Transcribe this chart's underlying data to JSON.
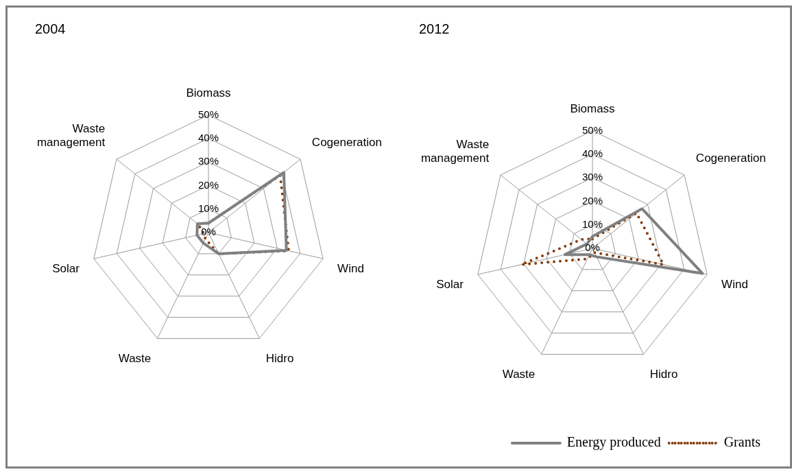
{
  "chart_data": [
    {
      "type": "radar",
      "title": "2004",
      "categories": [
        "Biomass",
        "Cogeneration",
        "Wind",
        "Hidro",
        "Waste",
        "Solar",
        "Waste management"
      ],
      "ylim": [
        0,
        50
      ],
      "yticks": [
        {
          "value": 0,
          "label": "0%"
        },
        {
          "value": 10,
          "label": "10%"
        },
        {
          "value": 20,
          "label": "20%"
        },
        {
          "value": 30,
          "label": "30%"
        },
        {
          "value": 40,
          "label": "40%"
        },
        {
          "value": 50,
          "label": "50%"
        }
      ],
      "grid": true,
      "legend": false,
      "series": [
        {
          "color": "#808080",
          "line_style": "solid",
          "values": [
            4,
            41,
            34,
            10,
            5,
            5,
            6
          ]
        },
        {
          "color": "#843c0c",
          "line_style": "dotted",
          "values": [
            4,
            39,
            35,
            10,
            3,
            2,
            6
          ]
        }
      ]
    },
    {
      "type": "radar",
      "title": "2012",
      "categories": [
        "Biomass",
        "Cogeneration",
        "Wind",
        "Hidro",
        "Waste",
        "Solar",
        "Waste management"
      ],
      "ylim": [
        0,
        50
      ],
      "yticks": [
        {
          "value": 0,
          "label": "0%"
        },
        {
          "value": 10,
          "label": "10%"
        },
        {
          "value": 20,
          "label": "20%"
        },
        {
          "value": 30,
          "label": "30%"
        },
        {
          "value": 40,
          "label": "40%"
        },
        {
          "value": 50,
          "label": "50%"
        }
      ],
      "grid": true,
      "legend": "bottom",
      "series": [
        {
          "name": "Energy produced",
          "color": "#808080",
          "line_style": "solid",
          "values": [
            5,
            27,
            48,
            4,
            3,
            12,
            3
          ]
        },
        {
          "name": "Grants",
          "color": "#843c0c",
          "line_style": "dotted",
          "values": [
            4,
            24,
            31,
            2,
            5,
            31,
            6
          ]
        }
      ]
    }
  ]
}
